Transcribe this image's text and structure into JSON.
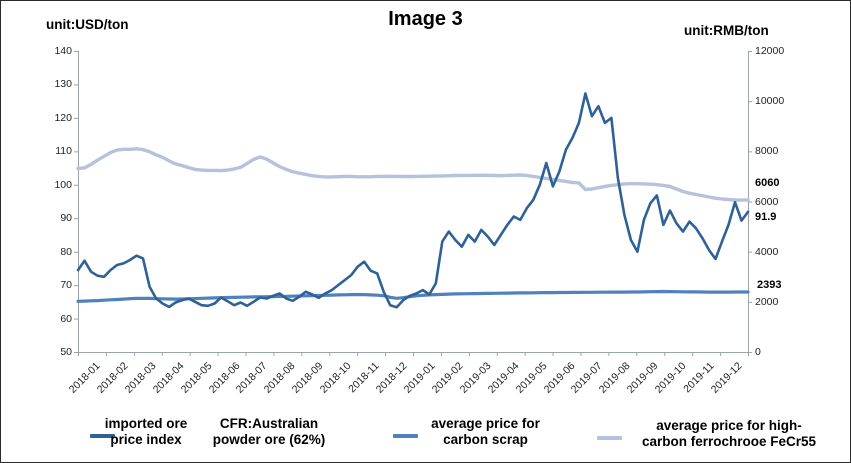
{
  "title": "Image 3",
  "unit_left": "unit:USD/ton",
  "unit_right": "unit:RMB/ton",
  "end_labels": {
    "ferro": "6060",
    "ore": "91.9",
    "scrap": "2393"
  },
  "legend": {
    "item1": {
      "line1a": "imported ore",
      "line2a": "price index",
      "line1b": "CFR:Australian",
      "line2b": "powder ore (62%)"
    },
    "item2": {
      "line1": "average price for",
      "line2": "carbon scrap"
    },
    "item3": {
      "line1": "average price for high-",
      "line2": "carbon ferrochrooe FeCr55"
    }
  },
  "chart_data": {
    "type": "line",
    "title": "Image 3",
    "grid": false,
    "legend_position": "bottom",
    "x_categories": [
      "2018-01",
      "2018-02",
      "2018-03",
      "2018-04",
      "2018-05",
      "2018-06",
      "2018-07",
      "2018-08",
      "2018-09",
      "2018-10",
      "2018-11",
      "2018-12",
      "2019-01",
      "2019-02",
      "2019-03",
      "2019-04",
      "2019-05",
      "2019-06",
      "2019-07",
      "2019-08",
      "2019-09",
      "2019-10",
      "2019-11",
      "2019-12"
    ],
    "axes": {
      "left": {
        "label": "unit:USD/ton",
        "min": 50,
        "max": 140,
        "ticks": [
          140,
          130,
          120,
          110,
          100,
          90,
          80,
          70,
          60,
          50
        ]
      },
      "right": {
        "label": "unit:RMB/ton",
        "min": 0,
        "max": 12000,
        "ticks": [
          12000,
          10000,
          8000,
          6000,
          4000,
          2000,
          0
        ]
      }
    },
    "series": [
      {
        "key": "ore",
        "name": "imported ore price index CFR:Australian powder ore (62%)",
        "axis": "left",
        "color": "#2f6096",
        "width": 2.6,
        "end_label": "91.9",
        "values": [
          74.5,
          77.3,
          74.0,
          72.8,
          72.5,
          74.5,
          76.0,
          76.5,
          77.5,
          78.8,
          78.0,
          69.5,
          66.0,
          64.5,
          63.5,
          64.8,
          65.5,
          66.0,
          65.0,
          64.0,
          63.8,
          64.5,
          66.3,
          65.2,
          64.0,
          64.8,
          63.8,
          65.0,
          66.3,
          66.0,
          66.8,
          67.5,
          66.0,
          65.3,
          66.5,
          68.0,
          67.2,
          66.2,
          67.5,
          68.5,
          70.0,
          71.5,
          73.0,
          75.5,
          77.0,
          74.3,
          73.5,
          68.0,
          64.0,
          63.4,
          65.5,
          66.8,
          67.5,
          68.5,
          67.2,
          70.5,
          83.0,
          86.0,
          83.5,
          81.5,
          85.0,
          83.0,
          86.5,
          84.5,
          82.0,
          85.0,
          88.0,
          90.5,
          89.5,
          93.0,
          95.5,
          100.0,
          106.5,
          99.5,
          104.0,
          110.5,
          114.0,
          118.5,
          127.3,
          120.5,
          123.5,
          118.5,
          120.0,
          102.0,
          91.0,
          83.5,
          80.0,
          89.5,
          94.5,
          96.8,
          88.0,
          92.3,
          88.5,
          86.0,
          89.0,
          87.0,
          84.0,
          80.5,
          77.8,
          83.0,
          88.0,
          94.8,
          89.3,
          91.9
        ]
      },
      {
        "key": "scrap",
        "name": "average price for carbon scrap",
        "axis": "right",
        "color": "#4e81bd",
        "width": 3.2,
        "end_label": "2393",
        "values": [
          2020,
          2030,
          2040,
          2050,
          2065,
          2080,
          2095,
          2110,
          2125,
          2135,
          2140,
          2138,
          2130,
          2120,
          2112,
          2108,
          2112,
          2120,
          2130,
          2140,
          2150,
          2158,
          2165,
          2172,
          2178,
          2184,
          2190,
          2195,
          2200,
          2205,
          2210,
          2215,
          2220,
          2226,
          2232,
          2240,
          2248,
          2254,
          2260,
          2268,
          2276,
          2282,
          2288,
          2292,
          2288,
          2278,
          2265,
          2245,
          2180,
          2140,
          2165,
          2205,
          2240,
          2262,
          2275,
          2288,
          2298,
          2308,
          2315,
          2320,
          2325,
          2330,
          2334,
          2338,
          2340,
          2344,
          2348,
          2352,
          2356,
          2358,
          2362,
          2364,
          2368,
          2370,
          2372,
          2374,
          2376,
          2378,
          2380,
          2382,
          2384,
          2386,
          2388,
          2388,
          2390,
          2392,
          2392,
          2396,
          2402,
          2408,
          2410,
          2408,
          2404,
          2400,
          2398,
          2396,
          2392,
          2390,
          2390,
          2390,
          2390,
          2392,
          2394,
          2393
        ]
      },
      {
        "key": "ferro",
        "name": "average price for high-carbon ferrochrooe FeCr55",
        "axis": "right",
        "color": "#b5c2de",
        "width": 3.4,
        "end_label": "6060",
        "values": [
          7320,
          7340,
          7480,
          7650,
          7800,
          7950,
          8050,
          8080,
          8080,
          8100,
          8070,
          7980,
          7860,
          7760,
          7620,
          7500,
          7430,
          7350,
          7280,
          7250,
          7240,
          7240,
          7230,
          7250,
          7300,
          7360,
          7520,
          7680,
          7780,
          7690,
          7540,
          7390,
          7280,
          7190,
          7130,
          7080,
          7030,
          7000,
          6980,
          6980,
          6990,
          7000,
          7000,
          6990,
          6985,
          6990,
          7000,
          7000,
          7005,
          7000,
          6995,
          6995,
          7000,
          7005,
          7010,
          7015,
          7020,
          7030,
          7035,
          7040,
          7040,
          7045,
          7050,
          7045,
          7035,
          7030,
          7040,
          7050,
          7055,
          7040,
          7000,
          6960,
          6920,
          6880,
          6840,
          6800,
          6760,
          6740,
          6480,
          6500,
          6550,
          6600,
          6640,
          6670,
          6700,
          6710,
          6710,
          6700,
          6690,
          6670,
          6640,
          6600,
          6500,
          6400,
          6330,
          6280,
          6230,
          6180,
          6130,
          6100,
          6080,
          6060,
          6055,
          6060
        ]
      }
    ]
  }
}
